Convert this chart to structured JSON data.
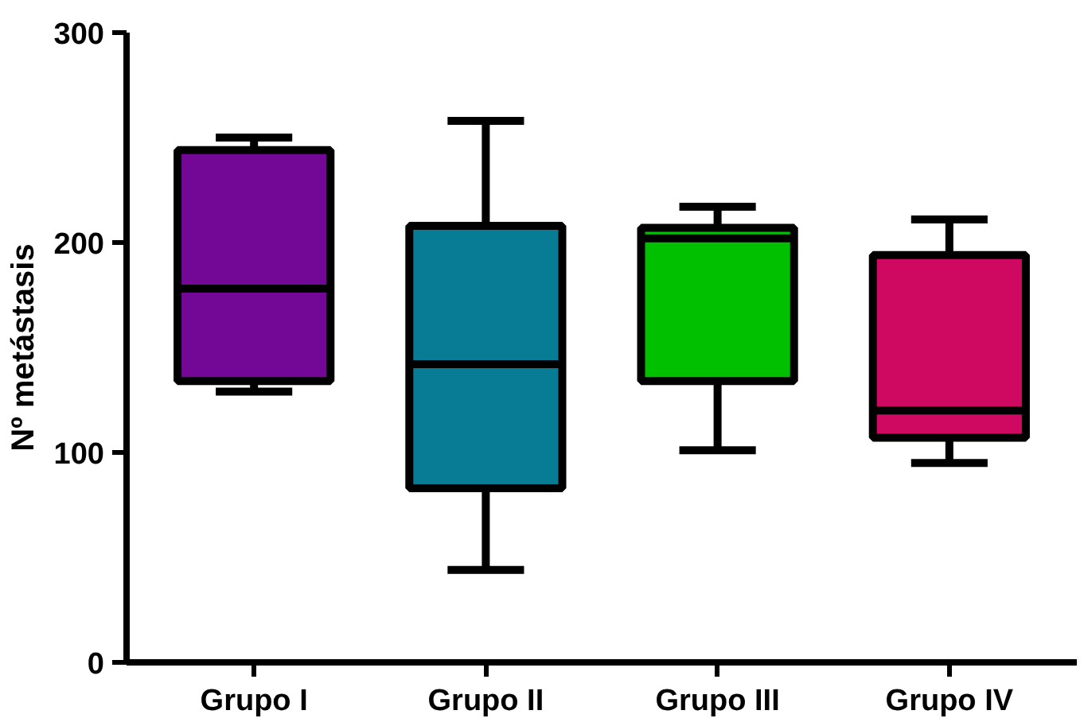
{
  "chart_data": {
    "type": "box",
    "ylabel": "Nº metástasis",
    "categories": [
      "Grupo I",
      "Grupo II",
      "Grupo III",
      "Grupo IV"
    ],
    "colors": [
      "#730896",
      "#077c94",
      "#00c000",
      "#cf0862"
    ],
    "boxes": [
      {
        "low": 129,
        "q1": 134,
        "median": 178,
        "q3": 244,
        "high": 250
      },
      {
        "low": 44,
        "q1": 83,
        "median": 142,
        "q3": 208,
        "high": 258
      },
      {
        "low": 101,
        "q1": 134,
        "median": 202,
        "q3": 207,
        "high": 217
      },
      {
        "low": 95,
        "q1": 107,
        "median": 120,
        "q3": 194,
        "high": 211
      }
    ],
    "ylim": [
      0,
      300
    ],
    "yticks": [
      0,
      100,
      200,
      300
    ],
    "grid": false
  }
}
